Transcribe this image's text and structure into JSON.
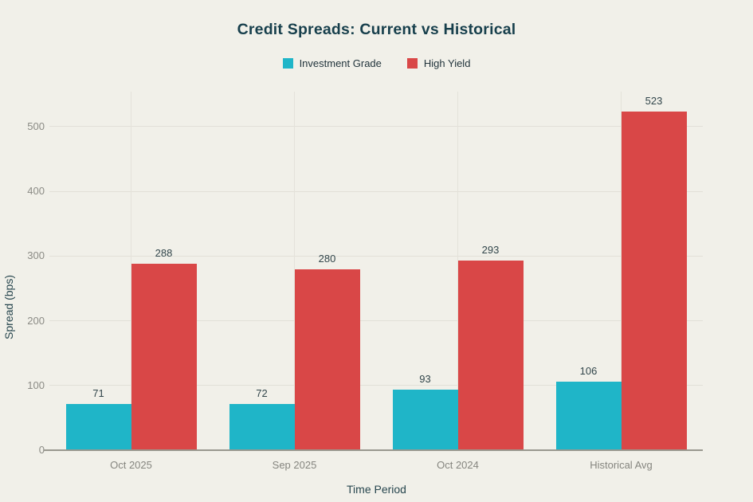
{
  "chart_data": {
    "type": "bar",
    "title": "Credit Spreads: Current vs Historical",
    "categories": [
      "Oct 2025",
      "Sep 2025",
      "Oct 2024",
      "Historical Avg"
    ],
    "series": [
      {
        "name": "Investment Grade",
        "color": "#1fb5c8",
        "values": [
          71,
          72,
          93,
          106
        ]
      },
      {
        "name": "High Yield",
        "color": "#d94747",
        "values": [
          288,
          280,
          293,
          523
        ]
      }
    ],
    "xlabel": "Time Period",
    "ylabel": "Spread (bps)",
    "ylim": [
      0,
      554
    ],
    "yticks": [
      0,
      100,
      200,
      300,
      400,
      500
    ],
    "grid": true,
    "legend_position": "top",
    "value_labels": true
  },
  "colors": {
    "background": "#f1f0e9",
    "title_text": "#173f4c",
    "axis_title_text": "#27464e",
    "tick_text": "#8b8b85",
    "value_label_text": "#32464b",
    "gridline": "#e2e0d8",
    "axis_line": "#99988f",
    "investment_grade": "#1fb5c8",
    "high_yield": "#d94747"
  }
}
